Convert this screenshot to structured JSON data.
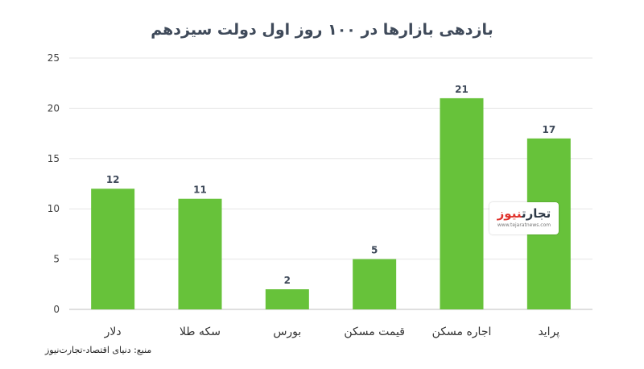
{
  "chart_data": {
    "type": "bar",
    "title": "بازدهی بازارها در ۱۰۰ روز اول دولت سیزدهم",
    "categories": [
      "دلار",
      "سکه طلا",
      "بورس",
      "قیمت مسکن",
      "اجاره مسکن",
      "پراید"
    ],
    "values": [
      12,
      11,
      2,
      5,
      21,
      17
    ],
    "ylim": [
      0,
      25
    ],
    "yticks": [
      0,
      5,
      10,
      15,
      20,
      25
    ],
    "xlabel": "",
    "ylabel": "",
    "grid": true,
    "bar_color": "#67c23a"
  },
  "source": "منبع: دنیای اقتصاد-تجارت‌نیوز",
  "logo": {
    "part1": "تجارت",
    "part2": "نیوز",
    "url": "www.tejaratnews.com"
  }
}
